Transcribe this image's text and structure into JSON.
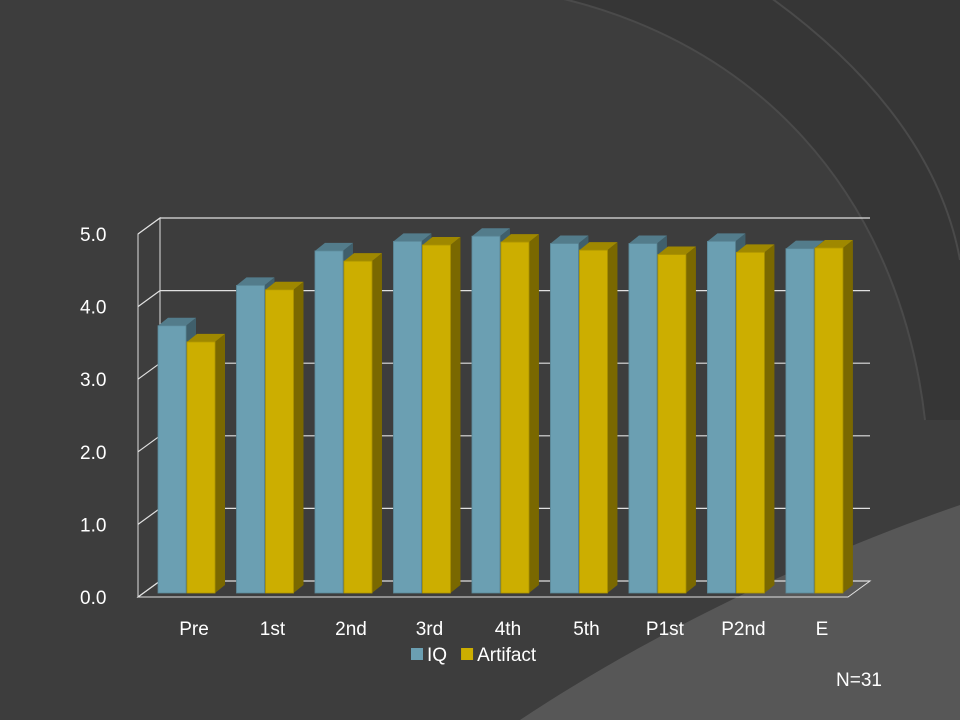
{
  "chart_data": {
    "type": "bar",
    "style": "3d-clustered",
    "categories": [
      "Pre",
      "1st",
      "2nd",
      "3rd",
      "4th",
      "5th",
      "P1st",
      "P2nd",
      "E"
    ],
    "series": [
      {
        "name": "IQ",
        "color": "#6b9fb2",
        "values": [
          3.75,
          4.3,
          4.77,
          4.9,
          4.97,
          4.87,
          4.87,
          4.9,
          4.8
        ]
      },
      {
        "name": "Artifact",
        "color": "#ccae00",
        "values": [
          3.53,
          4.24,
          4.63,
          4.85,
          4.89,
          4.78,
          4.72,
          4.75,
          4.81
        ]
      }
    ],
    "ylim": [
      0,
      5
    ],
    "yticks": [
      "0.0",
      "1.0",
      "2.0",
      "3.0",
      "4.0",
      "5.0"
    ],
    "grid": true,
    "legend_position": "bottom",
    "title": "",
    "xlabel": "",
    "ylabel": ""
  },
  "annotation": "N=31",
  "colors": {
    "background": "#3d3d3d",
    "grid": "#e0e0e0"
  }
}
